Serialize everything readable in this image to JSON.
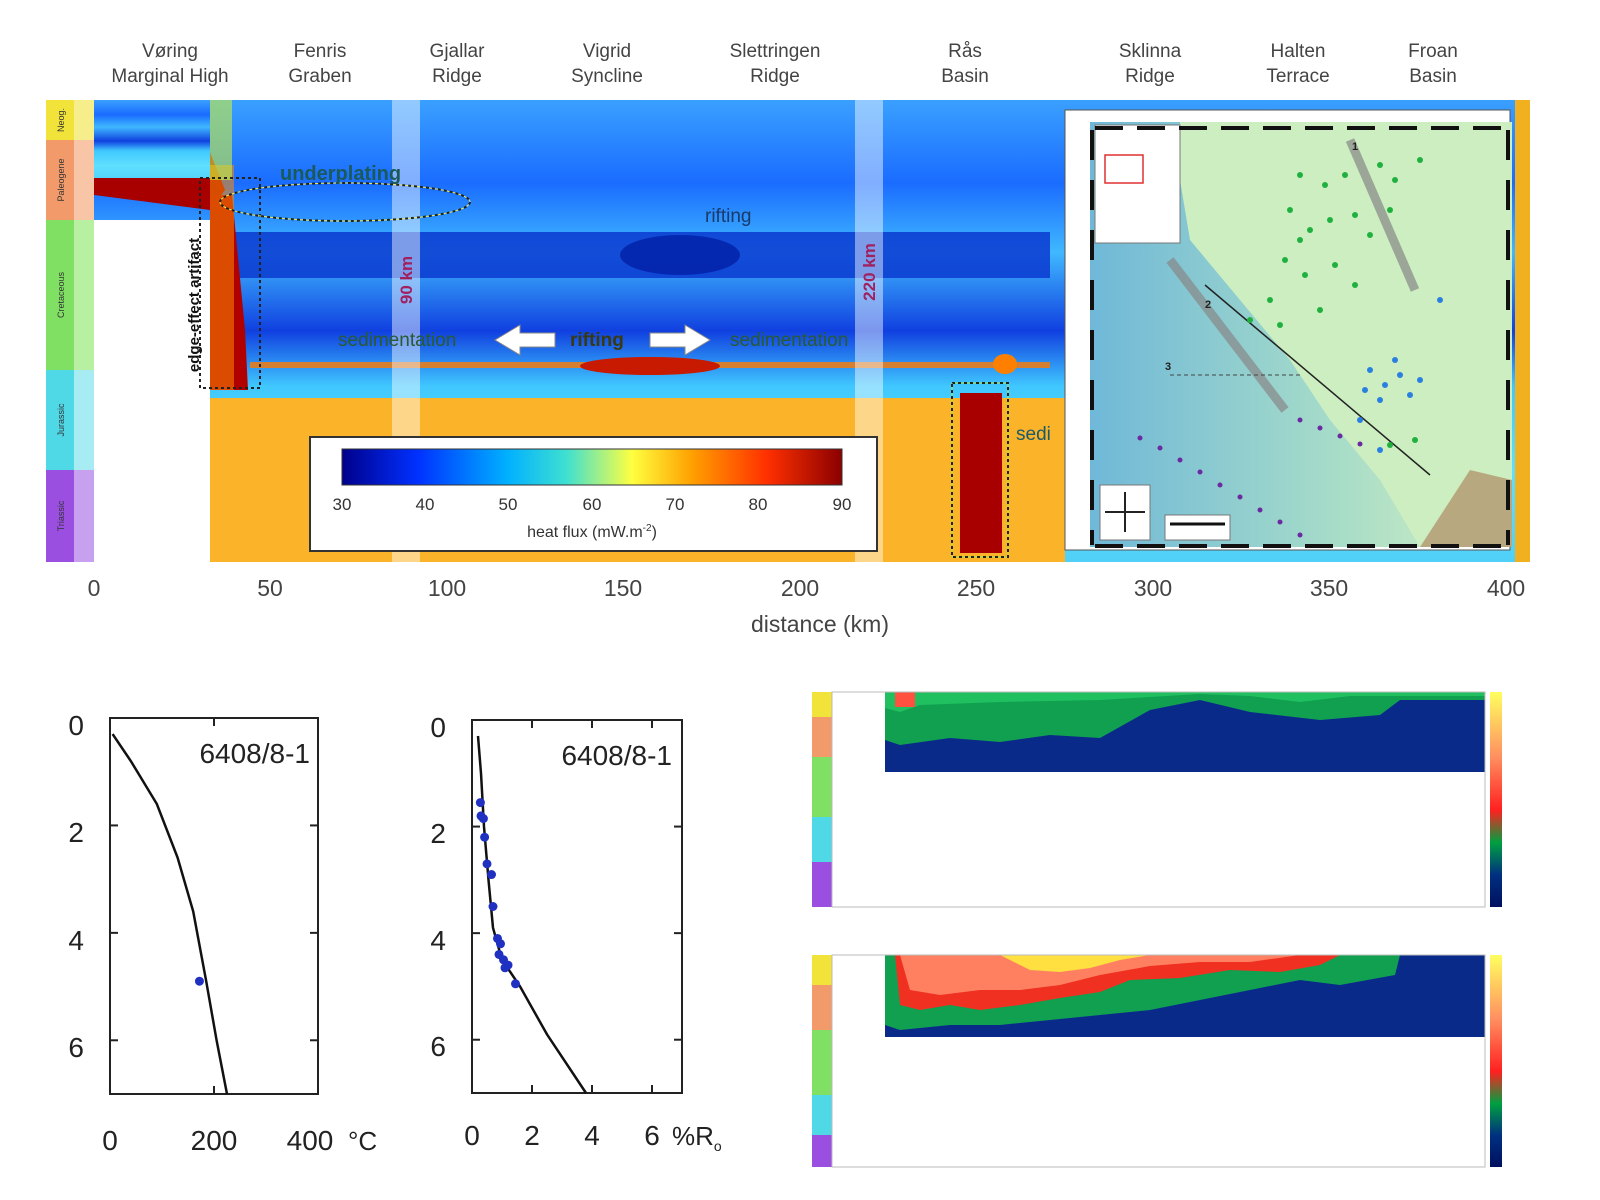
{
  "regions": [
    {
      "line1": "Vøring",
      "line2": "Marginal High"
    },
    {
      "line1": "Fenris",
      "line2": "Graben"
    },
    {
      "line1": "Gjallar",
      "line2": "Ridge"
    },
    {
      "line1": "Vigrid",
      "line2": "Syncline"
    },
    {
      "line1": "Slettringen",
      "line2": "Ridge"
    },
    {
      "line1": "Rås",
      "line2": "Basin"
    },
    {
      "line1": "Sklinna",
      "line2": "Ridge"
    },
    {
      "line1": "Halten",
      "line2": "Terrace"
    },
    {
      "line1": "Froan",
      "line2": "Basin"
    }
  ],
  "periods": [
    "Neog.",
    "Paleogene",
    "Cretaceous",
    "Jurassic",
    "Triassic"
  ],
  "period_colors": [
    "#f2e33a",
    "#f39a6a",
    "#7fe064",
    "#4fd8e6",
    "#9a4fe0"
  ],
  "section_labels": {
    "underplating": "underplating",
    "rifting_upper": "rifting",
    "rifting_mid": "rifting",
    "sedimentation_left": "sedimentation",
    "sedimentation_right": "sedimentation",
    "sed_partial": "sedi",
    "edge_effect": "edge-effect artifact",
    "marker_90": "90 km",
    "marker_220": "220 km"
  },
  "heat_colorbar": {
    "title": "heat flux (mW.m",
    "title_sup": "-2",
    "title_end": ")",
    "ticks": [
      "30",
      "40",
      "50",
      "60",
      "70",
      "80",
      "90"
    ],
    "colors": [
      "#00008b",
      "#0040ff",
      "#00b0ff",
      "#40e0d0",
      "#ffff40",
      "#ffa000",
      "#ff3000",
      "#8b0000"
    ]
  },
  "distance_axis": {
    "label": "distance (km)",
    "ticks": [
      "0",
      "50",
      "100",
      "150",
      "200",
      "250",
      "300",
      "350",
      "400"
    ]
  },
  "map_inset": {
    "line_labels": [
      "1",
      "2",
      "3"
    ]
  },
  "chart_data": [
    {
      "type": "line",
      "title": "6408/8-1",
      "xlabel": "",
      "x_unit": "°C",
      "xlim": [
        0,
        400
      ],
      "ylim": [
        7,
        0
      ],
      "x_ticks": [
        "0",
        "200",
        "400"
      ],
      "y_ticks": [
        "0",
        "2",
        "4",
        "6"
      ],
      "series": [
        {
          "values": [
            [
              5,
              0.3
            ],
            [
              40,
              0.8
            ],
            [
              90,
              1.6
            ],
            [
              130,
              2.6
            ],
            [
              160,
              3.6
            ],
            [
              185,
              4.9
            ],
            [
              205,
              6.0
            ],
            [
              225,
              7.0
            ]
          ]
        }
      ],
      "points": [
        [
          172,
          4.9
        ]
      ]
    },
    {
      "type": "line",
      "title": "6408/8-1",
      "xlabel": "",
      "x_unit": "%R",
      "x_unit_sub": "o",
      "xlim": [
        0,
        7
      ],
      "ylim": [
        7,
        0
      ],
      "x_ticks": [
        "0",
        "2",
        "4",
        "6"
      ],
      "y_ticks": [
        "0",
        "2",
        "4",
        "6"
      ],
      "series": [
        {
          "values": [
            [
              0.2,
              0.3
            ],
            [
              0.3,
              1.0
            ],
            [
              0.4,
              2.0
            ],
            [
              0.55,
              3.0
            ],
            [
              0.7,
              3.9
            ],
            [
              1.0,
              4.5
            ],
            [
              1.6,
              5.0
            ],
            [
              2.5,
              5.9
            ],
            [
              3.8,
              7.0
            ]
          ]
        }
      ],
      "points": [
        [
          0.28,
          1.55
        ],
        [
          0.3,
          1.8
        ],
        [
          0.38,
          1.85
        ],
        [
          0.42,
          2.2
        ],
        [
          0.5,
          2.7
        ],
        [
          0.65,
          2.9
        ],
        [
          0.7,
          3.5
        ],
        [
          0.85,
          4.1
        ],
        [
          0.95,
          4.2
        ],
        [
          0.9,
          4.4
        ],
        [
          1.05,
          4.5
        ],
        [
          1.1,
          4.65
        ],
        [
          1.2,
          4.6
        ],
        [
          1.45,
          4.95
        ]
      ]
    }
  ]
}
